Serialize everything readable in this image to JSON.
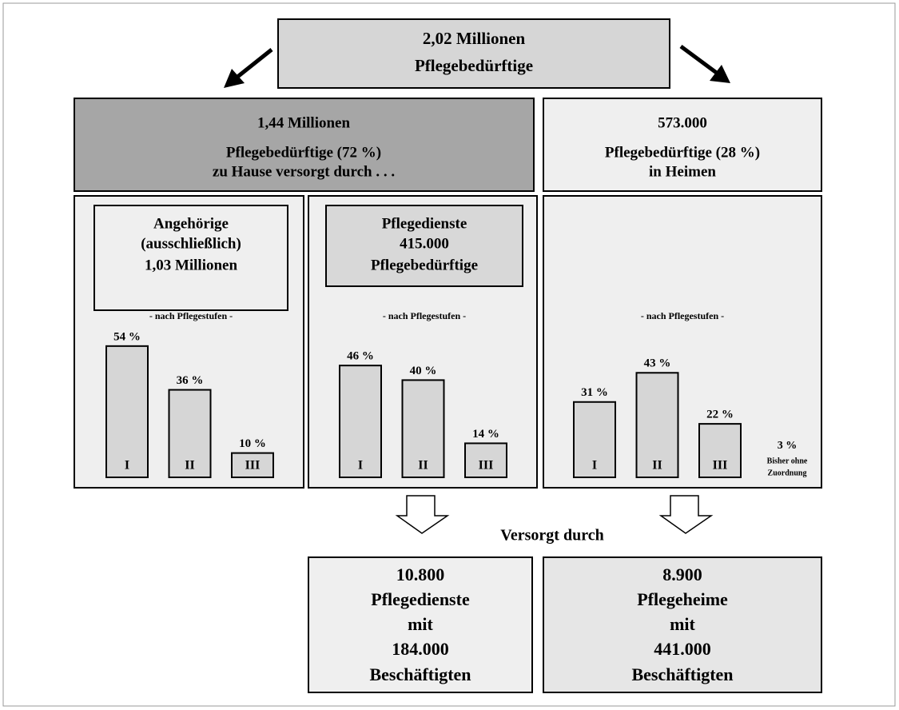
{
  "total": {
    "lines": [
      "2,02 Millionen",
      "Pflegebedürftige"
    ]
  },
  "home": {
    "lines": [
      "1,44  Millionen",
      "Pflegebedürftige (72 %)",
      "zu Hause versorgt durch . . ."
    ]
  },
  "homes_care": {
    "lines": [
      "573.000",
      "Pflegebedürftige (28 %)",
      "in Heimen"
    ]
  },
  "panels": [
    {
      "box_lines": [
        "Angehörige",
        "(ausschließlich)",
        "1,03 Millionen"
      ],
      "subtitle": "- nach Pflegestufen -",
      "categories": [
        "I",
        "II",
        "III"
      ],
      "values": [
        54,
        36,
        10
      ],
      "value_labels": [
        "54 %",
        "36 %",
        "10 %"
      ]
    },
    {
      "box_lines": [
        "Pflegedienste",
        "415.000",
        "Pflegebedürftige"
      ],
      "subtitle": "- nach Pflegestufen -",
      "categories": [
        "I",
        "II",
        "III"
      ],
      "values": [
        46,
        40,
        14
      ],
      "value_labels": [
        "46 %",
        "40 %",
        "14 %"
      ]
    },
    {
      "subtitle": "- nach Pflegestufen -",
      "categories": [
        "I",
        "II",
        "III"
      ],
      "values": [
        31,
        43,
        22
      ],
      "value_labels": [
        "31 %",
        "43 %",
        "22 %"
      ],
      "unassigned": {
        "value_label": "3 %",
        "label_lines": [
          "Bisher ohne",
          "Zuordnung"
        ]
      }
    }
  ],
  "connector": "Versorgt durch",
  "providers": [
    {
      "lines": [
        "10.800",
        "Pflegedienste",
        "mit",
        "184.000",
        "Beschäftigten"
      ]
    },
    {
      "lines": [
        "8.900",
        "Pflegeheime",
        "mit",
        "441.000",
        "Beschäftigten"
      ]
    }
  ]
}
